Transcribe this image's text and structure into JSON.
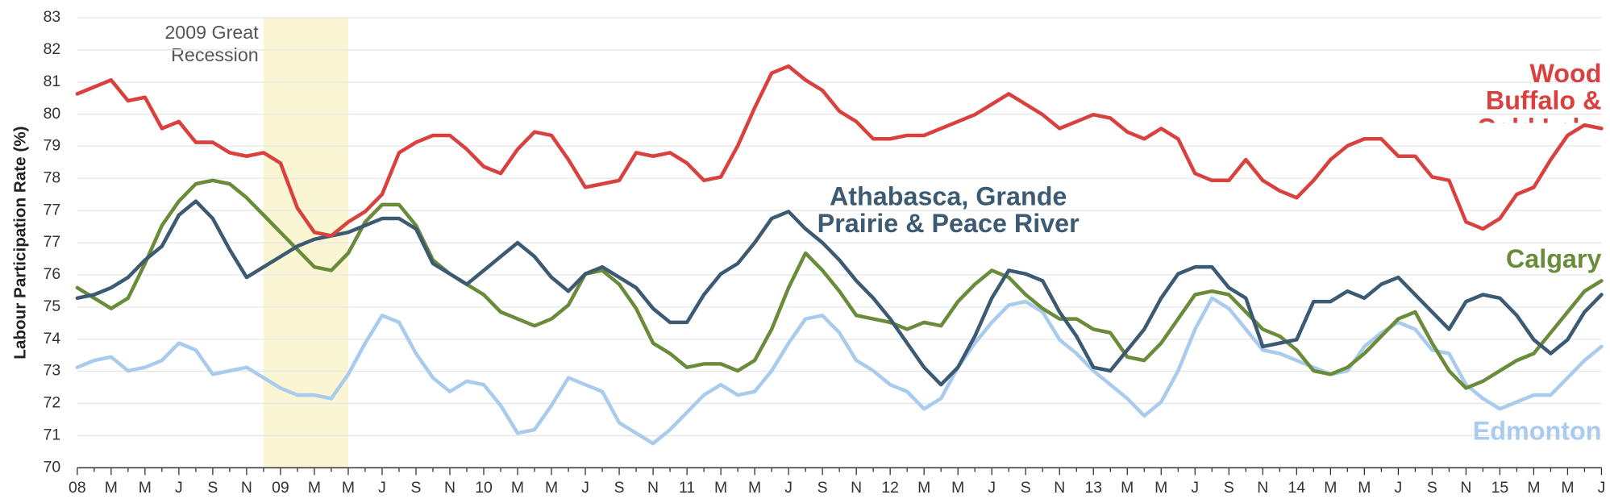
{
  "chart_data": {
    "type": "line",
    "y_label": "Labour Participation Rate (%)",
    "categories": [
      "08",
      null,
      "M",
      null,
      "M",
      null,
      "J",
      null,
      "S",
      null,
      "N",
      null,
      "09",
      null,
      "M",
      null,
      "M",
      null,
      "J",
      null,
      "S",
      null,
      "N",
      null,
      "10",
      null,
      "M",
      null,
      "M",
      null,
      "J",
      null,
      "S",
      null,
      "N",
      null,
      "11",
      null,
      "M",
      null,
      "M",
      null,
      "J",
      null,
      "S",
      null,
      "N",
      null,
      "12",
      null,
      "M",
      null,
      "M",
      null,
      "J",
      null,
      "S",
      null,
      "N",
      null,
      "13",
      null,
      "M",
      null,
      "M",
      null,
      "J",
      null,
      "S",
      null,
      "N",
      null,
      "14",
      null,
      "M",
      null,
      "M",
      null,
      "J",
      null,
      "S",
      null,
      "N",
      null,
      "15",
      null,
      "M",
      null,
      "M",
      null,
      "J"
    ],
    "ylim": [
      70,
      83
    ],
    "yticks": [
      70,
      {
        "value": 70.93,
        "label": "71"
      },
      {
        "value": 71.86,
        "label": "72"
      },
      {
        "value": 72.79,
        "label": "73"
      },
      {
        "value": 73.71,
        "label": "74"
      },
      {
        "value": 74.64,
        "label": "75"
      },
      {
        "value": 75.57,
        "label": "76"
      },
      {
        "value": 76.5,
        "label": "77"
      },
      {
        "value": 77.43,
        "label": "77"
      },
      {
        "value": 78.36,
        "label": "78"
      },
      {
        "value": 79.29,
        "label": "79"
      },
      {
        "value": 80.21,
        "label": "80"
      },
      {
        "value": 81.14,
        "label": "81"
      },
      {
        "value": 82.07,
        "label": "82"
      },
      83
    ],
    "grid": true,
    "shade": {
      "label": "2009 Great Recession",
      "start": 11,
      "end": 16,
      "color": "#faf6d4"
    },
    "series": [
      {
        "name": "Wood Buffalo & Cold Lake",
        "color": "#d9413f",
        "values": [
          80.8,
          81.0,
          81.2,
          80.6,
          80.7,
          79.8,
          80.0,
          79.4,
          79.4,
          79.1,
          79.0,
          79.1,
          78.8,
          77.5,
          76.8,
          76.7,
          77.1,
          77.4,
          77.9,
          79.1,
          79.4,
          79.6,
          79.6,
          79.2,
          78.7,
          78.5,
          79.2,
          79.7,
          79.6,
          78.9,
          78.1,
          78.2,
          78.3,
          79.1,
          79.0,
          79.1,
          78.8,
          78.3,
          78.4,
          79.3,
          80.4,
          81.4,
          81.6,
          81.2,
          80.9,
          80.3,
          80.0,
          79.5,
          79.5,
          79.6,
          79.6,
          79.8,
          80.0,
          80.2,
          80.5,
          80.8,
          80.5,
          80.2,
          79.8,
          80.0,
          80.2,
          80.1,
          79.7,
          79.5,
          79.8,
          79.5,
          78.5,
          78.3,
          78.3,
          78.9,
          78.3,
          78.0,
          77.8,
          78.3,
          78.9,
          79.3,
          79.5,
          79.5,
          79.0,
          79.0,
          78.4,
          78.3,
          77.1,
          76.9,
          77.2,
          77.9,
          78.1,
          78.9,
          79.6,
          79.9,
          79.8
        ]
      },
      {
        "name": "Athabasca, Grande Prairie & Peace River",
        "color": "#3d5a73",
        "values": [
          74.9,
          75.0,
          75.2,
          75.5,
          76.0,
          76.4,
          77.3,
          77.7,
          77.2,
          76.3,
          75.5,
          75.8,
          76.1,
          76.4,
          76.6,
          76.7,
          76.8,
          77.0,
          77.2,
          77.2,
          76.9,
          75.9,
          75.6,
          75.3,
          75.7,
          76.1,
          76.5,
          76.1,
          75.5,
          75.1,
          75.6,
          75.8,
          75.5,
          75.2,
          74.6,
          74.2,
          74.2,
          75.0,
          75.6,
          75.9,
          76.5,
          77.2,
          77.4,
          76.9,
          76.5,
          76.0,
          75.4,
          74.9,
          74.3,
          73.6,
          72.9,
          72.4,
          72.9,
          73.8,
          74.9,
          75.7,
          75.6,
          75.4,
          74.5,
          73.8,
          72.9,
          72.8,
          73.4,
          74.0,
          74.9,
          75.6,
          75.8,
          75.8,
          75.2,
          74.9,
          73.5,
          73.6,
          73.7,
          74.8,
          74.8,
          75.1,
          74.9,
          75.3,
          75.5,
          75.0,
          74.5,
          74.0,
          74.8,
          75.0,
          74.9,
          74.4,
          73.7,
          73.3,
          73.7,
          74.5,
          75.0
        ]
      },
      {
        "name": "Calgary",
        "color": "#6a8c3a",
        "values": [
          75.2,
          74.9,
          74.6,
          74.9,
          75.9,
          77.0,
          77.7,
          78.2,
          78.3,
          78.2,
          77.8,
          77.3,
          76.8,
          76.3,
          75.8,
          75.7,
          76.2,
          77.1,
          77.6,
          77.6,
          77.0,
          76.0,
          75.6,
          75.3,
          75.0,
          74.5,
          74.3,
          74.1,
          74.3,
          74.7,
          75.6,
          75.7,
          75.3,
          74.6,
          73.6,
          73.3,
          72.9,
          73.0,
          73.0,
          72.8,
          73.1,
          74.0,
          75.2,
          76.2,
          75.7,
          75.1,
          74.4,
          74.3,
          74.2,
          74.0,
          74.2,
          74.1,
          74.8,
          75.3,
          75.7,
          75.5,
          75.0,
          74.6,
          74.3,
          74.3,
          74.0,
          73.9,
          73.2,
          73.1,
          73.6,
          74.3,
          75.0,
          75.1,
          75.0,
          74.5,
          74.0,
          73.8,
          73.4,
          72.8,
          72.7,
          72.9,
          73.3,
          73.8,
          74.3,
          74.5,
          73.6,
          72.8,
          72.3,
          72.5,
          72.8,
          73.1,
          73.3,
          73.9,
          74.5,
          75.1,
          75.4
        ]
      },
      {
        "name": "Edmonton",
        "color": "#a9cbee",
        "values": [
          72.9,
          73.1,
          73.2,
          72.8,
          72.9,
          73.1,
          73.6,
          73.4,
          72.7,
          72.8,
          72.9,
          72.6,
          72.3,
          72.1,
          72.1,
          72.0,
          72.7,
          73.6,
          74.4,
          74.2,
          73.3,
          72.6,
          72.2,
          72.5,
          72.4,
          71.8,
          71.0,
          71.1,
          71.8,
          72.6,
          72.4,
          72.2,
          71.3,
          71.0,
          70.7,
          71.1,
          71.6,
          72.1,
          72.4,
          72.1,
          72.2,
          72.8,
          73.6,
          74.3,
          74.4,
          73.9,
          73.1,
          72.8,
          72.4,
          72.2,
          71.7,
          72.0,
          72.9,
          73.6,
          74.2,
          74.7,
          74.8,
          74.5,
          73.7,
          73.3,
          72.8,
          72.4,
          72.0,
          71.5,
          71.9,
          72.8,
          74.0,
          74.9,
          74.6,
          74.0,
          73.4,
          73.3,
          73.1,
          72.9,
          72.7,
          72.8,
          73.5,
          73.9,
          74.2,
          74.0,
          73.4,
          73.3,
          72.4,
          72.0,
          71.7,
          71.9,
          72.1,
          72.1,
          72.6,
          73.1,
          73.5
        ]
      }
    ]
  }
}
